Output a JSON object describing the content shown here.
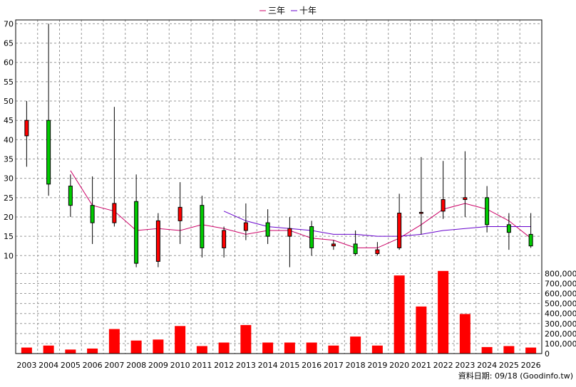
{
  "legend": [
    {
      "label": "三年",
      "color": "#cc0066"
    },
    {
      "label": "十年",
      "color": "#6600cc"
    }
  ],
  "footer": "資料日期: 09/18 (Goodinfo.tw)",
  "colors": {
    "up": "#ff0000",
    "down": "#00cc00",
    "grid": "#999999",
    "volume": "#ff0000"
  },
  "chart_data": {
    "type": "candlestick+bar",
    "years": [
      "2003",
      "2004",
      "2005",
      "2006",
      "2007",
      "2008",
      "2009",
      "2010",
      "2011",
      "2012",
      "2013",
      "2014",
      "2015",
      "2016",
      "2017",
      "2018",
      "2019",
      "2020",
      "2021",
      "2022",
      "2023",
      "2024",
      "2025",
      "2026"
    ],
    "price_axis": {
      "ticks": [
        10,
        15,
        20,
        25,
        30,
        35,
        40,
        45,
        50,
        55,
        60,
        65,
        70
      ],
      "ylim": [
        6,
        71
      ]
    },
    "volume_axis": {
      "ticks": [
        0,
        100000,
        200000,
        300000,
        400000,
        500000,
        600000,
        700000,
        800000
      ],
      "tick_labels": [
        "0",
        "100,000",
        "200,000",
        "300,000",
        "400,000",
        "500,000",
        "600,000",
        "700,000",
        "800,000"
      ],
      "ylim": [
        0,
        810000
      ]
    },
    "candles": [
      {
        "year": "2003",
        "open": 41,
        "close": 45,
        "high": 50,
        "low": 33
      },
      {
        "year": "2004",
        "open": 45,
        "close": 28.5,
        "high": 70,
        "low": 25.5
      },
      {
        "year": "2005",
        "open": 28,
        "close": 23,
        "high": 31,
        "low": 20
      },
      {
        "year": "2006",
        "open": 23,
        "close": 18.5,
        "high": 30.5,
        "low": 13
      },
      {
        "year": "2007",
        "open": 18.5,
        "close": 23.5,
        "high": 48.5,
        "low": 17.5
      },
      {
        "year": "2008",
        "open": 24,
        "close": 8,
        "high": 31,
        "low": 7
      },
      {
        "year": "2009",
        "open": 8.5,
        "close": 19,
        "high": 21,
        "low": 7
      },
      {
        "year": "2010",
        "open": 19,
        "close": 22.5,
        "high": 29,
        "low": 13
      },
      {
        "year": "2011",
        "open": 23,
        "close": 12,
        "high": 25.5,
        "low": 9.5
      },
      {
        "year": "2012",
        "open": 12,
        "close": 16.5,
        "high": 17.5,
        "low": 9.5
      },
      {
        "year": "2013",
        "open": 16.5,
        "close": 18.5,
        "high": 23.5,
        "low": 14
      },
      {
        "year": "2014",
        "open": 18.5,
        "close": 15,
        "high": 22,
        "low": 13
      },
      {
        "year": "2015",
        "open": 15,
        "close": 17,
        "high": 20,
        "low": 7
      },
      {
        "year": "2016",
        "open": 17.5,
        "close": 12,
        "high": 19,
        "low": 10
      },
      {
        "year": "2017",
        "open": 12.5,
        "close": 13,
        "high": 14,
        "low": 11.5
      },
      {
        "year": "2018",
        "open": 13,
        "close": 10.5,
        "high": 16.5,
        "low": 10
      },
      {
        "year": "2019",
        "open": 10.5,
        "close": 11.5,
        "high": 13.5,
        "low": 10
      },
      {
        "year": "2020",
        "open": 12,
        "close": 21,
        "high": 26,
        "low": 11.5
      },
      {
        "year": "2021",
        "open": 21,
        "close": 21.2,
        "high": 35.5,
        "low": 15.5
      },
      {
        "year": "2022",
        "open": 21.5,
        "close": 24.5,
        "high": 34.5,
        "low": 19.5
      },
      {
        "year": "2023",
        "open": 24.5,
        "close": 25,
        "high": 37,
        "low": 20
      },
      {
        "year": "2024",
        "open": 25,
        "close": 18,
        "high": 28,
        "low": 16
      },
      {
        "year": "2025",
        "open": 18,
        "close": 16,
        "high": 21,
        "low": 11.5
      },
      {
        "year": "2026",
        "open": 15.5,
        "close": 12.5,
        "high": 21,
        "low": 12
      }
    ],
    "series": [
      {
        "name": "三年",
        "color": "#cc0066",
        "values": [
          null,
          null,
          32,
          23,
          21.5,
          16.5,
          17,
          16.5,
          18,
          17,
          15.5,
          16.5,
          16.5,
          14.5,
          14,
          12,
          12,
          14.5,
          18,
          22,
          23.5,
          22,
          19,
          14.5
        ]
      },
      {
        "name": "十年",
        "color": "#6600cc",
        "values": [
          null,
          null,
          null,
          null,
          null,
          null,
          null,
          null,
          null,
          21.5,
          19,
          17.5,
          17,
          16.5,
          15.5,
          15.5,
          15,
          15,
          15.5,
          16.5,
          17,
          17.5,
          17.5,
          17.5
        ]
      }
    ],
    "volumes": [
      60000,
      80000,
      40000,
      50000,
      245000,
      130000,
      140000,
      275000,
      75000,
      110000,
      285000,
      110000,
      110000,
      110000,
      80000,
      170000,
      80000,
      780000,
      470000,
      825000,
      395000,
      65000,
      75000,
      60000
    ]
  }
}
